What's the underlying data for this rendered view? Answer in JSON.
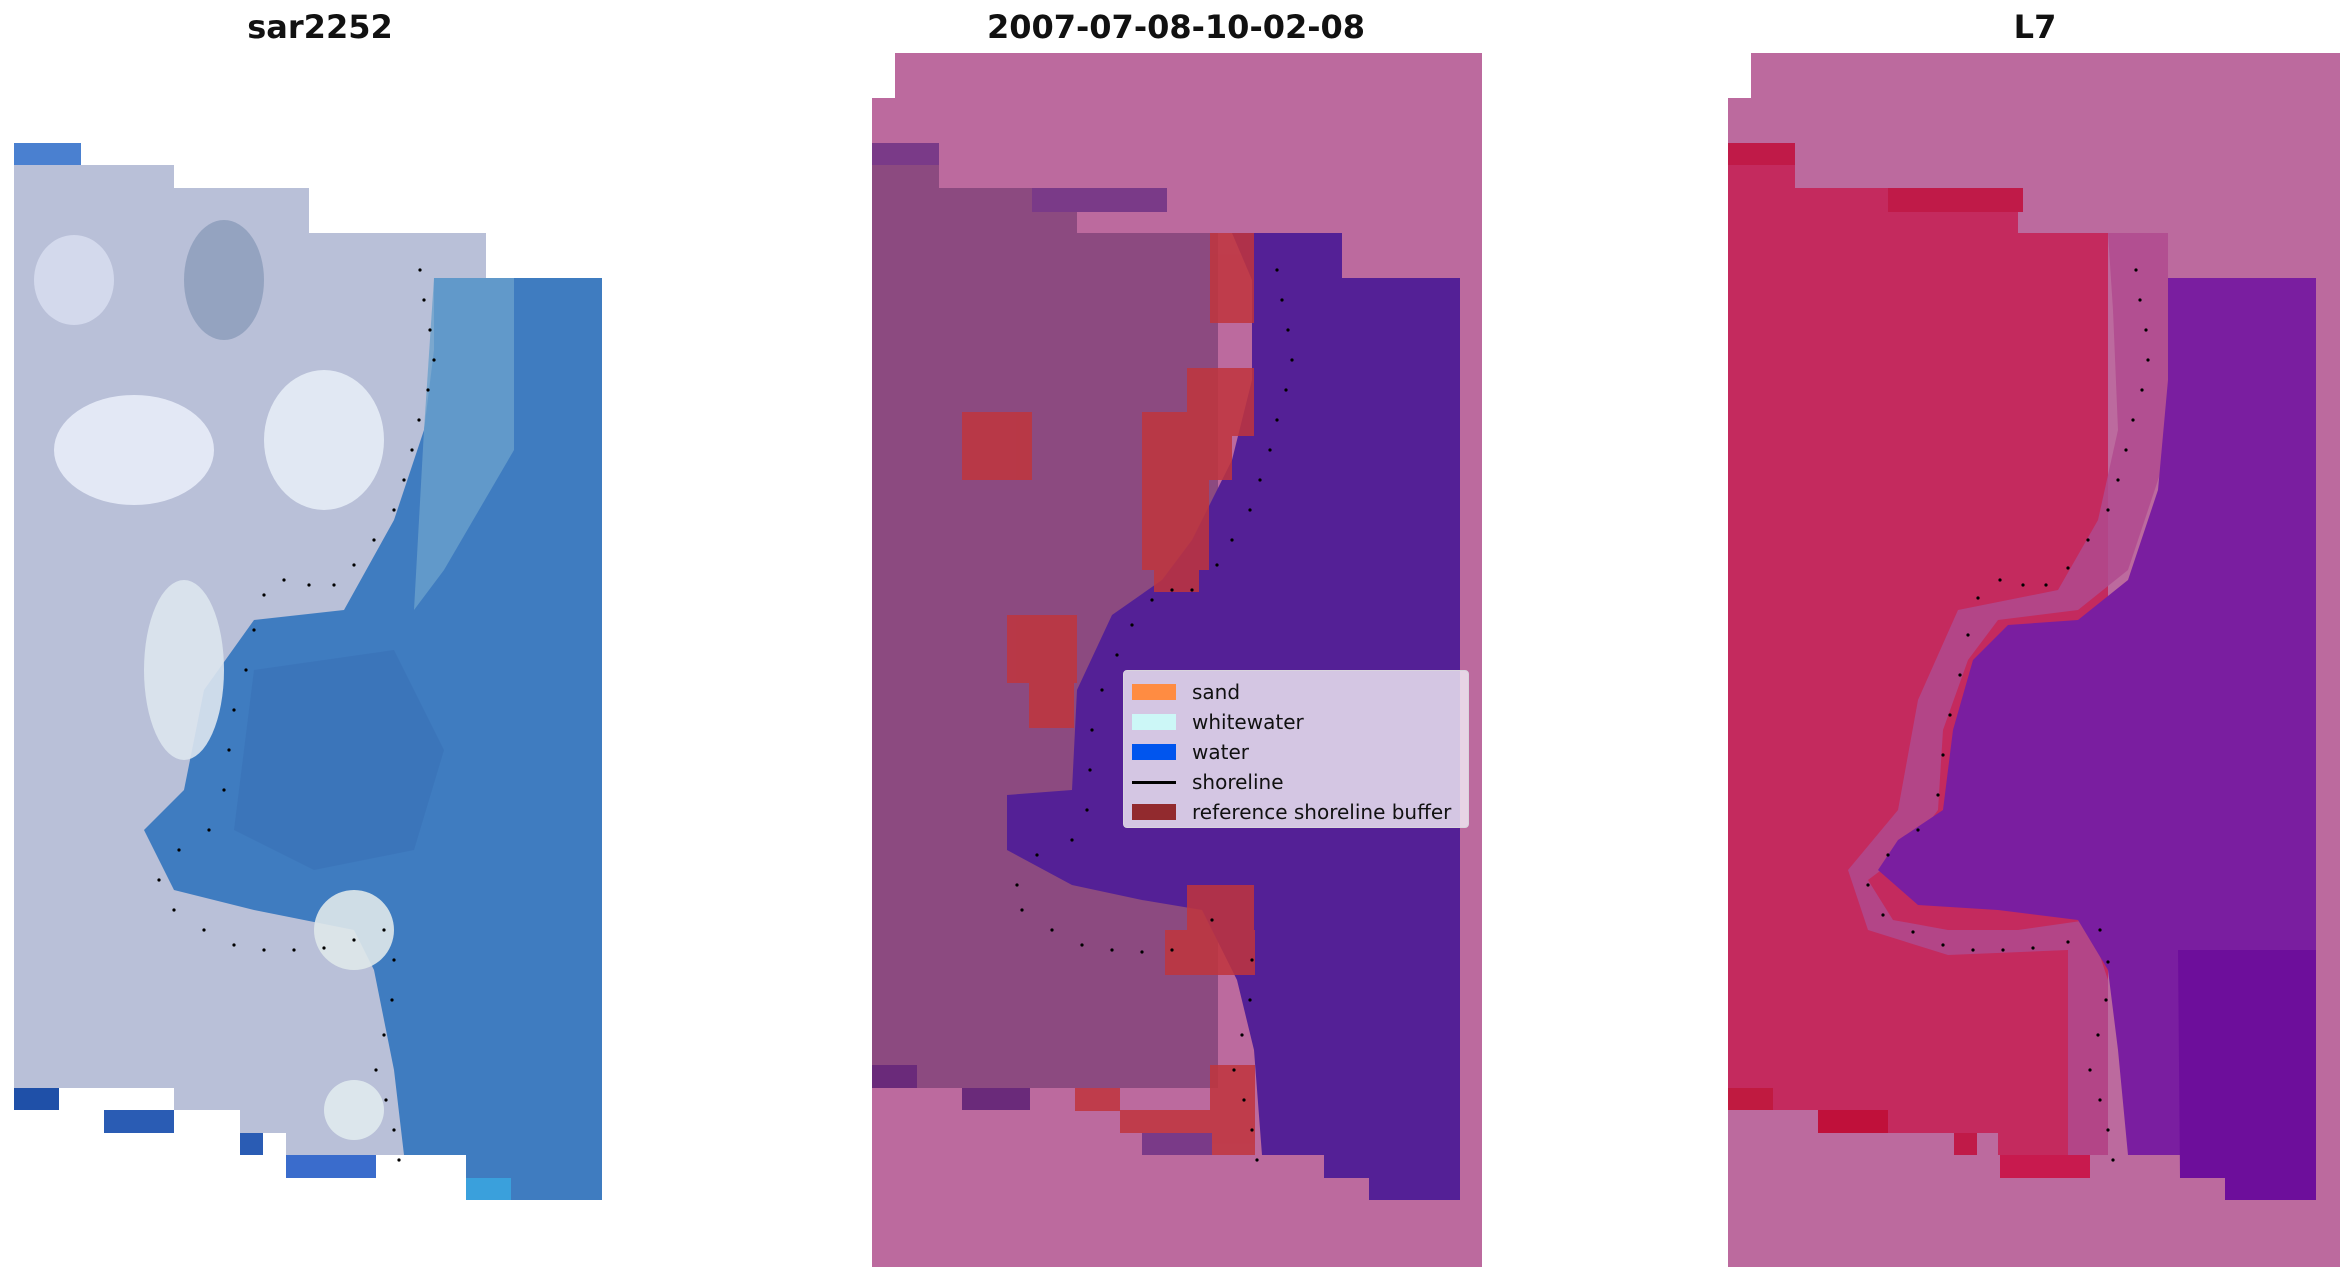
{
  "panels": [
    {
      "title": "sar2252"
    },
    {
      "title": "2007-07-08-10-02-08"
    },
    {
      "title": "L7"
    }
  ],
  "legend": {
    "items": [
      {
        "label": "sand",
        "color": "#ff8c42"
      },
      {
        "label": "whitewater",
        "color": "#ccf7f7"
      },
      {
        "label": "water",
        "color": "#0055ee"
      },
      {
        "label": "shoreline",
        "color": "#000000"
      },
      {
        "label": "reference shoreline buffer",
        "color": "#922a2e"
      }
    ]
  },
  "colors": {
    "rgb_land_light": "#c9cde0",
    "rgb_water": "#3f7cc0",
    "class_background": "#bc6a9e",
    "class_water": "#542096",
    "class_land": "#8c4a80",
    "buffer_overlay": "#c0353d",
    "index_land": "#c42a5e",
    "index_water": "#7a1ea0"
  }
}
